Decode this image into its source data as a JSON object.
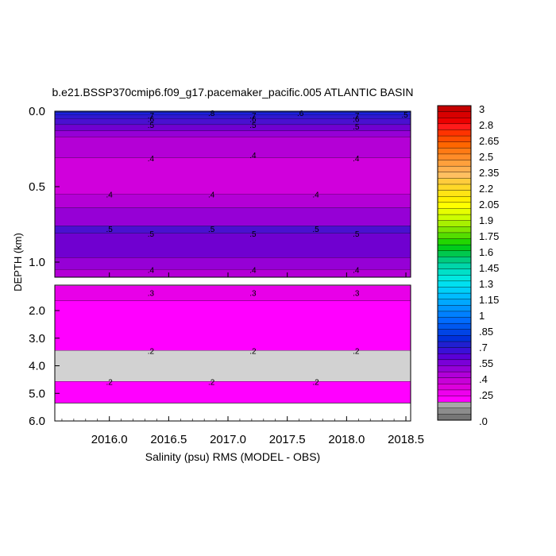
{
  "chart_data": {
    "type": "heatmap",
    "title": "b.e21.BSSP370cmip6.f09_g17.pacemaker_pacific.005 ATLANTIC BASIN",
    "xlabel": "Salinity (psu) RMS (MODEL - OBS)",
    "ylabel": "DEPTH (km)",
    "xlim": [
      2015.54,
      2018.54
    ],
    "x_ticks": [
      "2016.0",
      "2016.5",
      "2017.0",
      "2017.5",
      "2018.0",
      "2018.5"
    ],
    "upper_panel": {
      "depth_range_km": [
        0.0,
        1.1
      ],
      "y_ticks": [
        "0.0",
        "0.5",
        "1.0"
      ],
      "layers": [
        {
          "top": 0.0,
          "bottom": 0.01,
          "value": 0.8
        },
        {
          "top": 0.01,
          "bottom": 0.025,
          "value": 0.65
        },
        {
          "top": 0.025,
          "bottom": 0.05,
          "value": 0.6
        },
        {
          "top": 0.05,
          "bottom": 0.09,
          "value": 0.55
        },
        {
          "top": 0.09,
          "bottom": 0.13,
          "value": 0.5
        },
        {
          "top": 0.13,
          "bottom": 0.17,
          "value": 0.45
        },
        {
          "top": 0.17,
          "bottom": 0.31,
          "value": 0.4
        },
        {
          "top": 0.31,
          "bottom": 0.55,
          "value": 0.35
        },
        {
          "top": 0.55,
          "bottom": 0.64,
          "value": 0.4
        },
        {
          "top": 0.64,
          "bottom": 0.76,
          "value": 0.45
        },
        {
          "top": 0.76,
          "bottom": 0.81,
          "value": 0.55
        },
        {
          "top": 0.81,
          "bottom": 0.97,
          "value": 0.5
        },
        {
          "top": 0.97,
          "bottom": 1.05,
          "value": 0.45
        },
        {
          "top": 1.05,
          "bottom": 1.1,
          "value": 0.4
        }
      ],
      "contour_labels": [
        {
          "text": ".7",
          "x": 2016.35,
          "depth": 0.025
        },
        {
          "text": ".6",
          "x": 2016.35,
          "depth": 0.05
        },
        {
          "text": ".5",
          "x": 2016.35,
          "depth": 0.09
        },
        {
          "text": ".8",
          "x": 2016.86,
          "depth": 0.01
        },
        {
          "text": ".7",
          "x": 2017.21,
          "depth": 0.025
        },
        {
          "text": ".6",
          "x": 2017.21,
          "depth": 0.05
        },
        {
          "text": ".5",
          "x": 2017.21,
          "depth": 0.09
        },
        {
          "text": ".6",
          "x": 2017.61,
          "depth": 0.01
        },
        {
          "text": ".7",
          "x": 2018.08,
          "depth": 0.025
        },
        {
          "text": ".6",
          "x": 2018.08,
          "depth": 0.05
        },
        {
          "text": ".5",
          "x": 2018.08,
          "depth": 0.1
        },
        {
          "text": ".5",
          "x": 2018.49,
          "depth": 0.02
        },
        {
          "text": ".4",
          "x": 2016.35,
          "depth": 0.31
        },
        {
          "text": ".4",
          "x": 2017.21,
          "depth": 0.29
        },
        {
          "text": ".4",
          "x": 2018.08,
          "depth": 0.31
        },
        {
          "text": ".4",
          "x": 2016.0,
          "depth": 0.55
        },
        {
          "text": ".4",
          "x": 2016.86,
          "depth": 0.55
        },
        {
          "text": ".4",
          "x": 2017.74,
          "depth": 0.55
        },
        {
          "text": ".5",
          "x": 2016.0,
          "depth": 0.78
        },
        {
          "text": ".5",
          "x": 2016.35,
          "depth": 0.81
        },
        {
          "text": ".5",
          "x": 2016.86,
          "depth": 0.78
        },
        {
          "text": ".5",
          "x": 2017.21,
          "depth": 0.81
        },
        {
          "text": ".5",
          "x": 2017.74,
          "depth": 0.78
        },
        {
          "text": ".5",
          "x": 2018.08,
          "depth": 0.81
        },
        {
          "text": ".4",
          "x": 2016.35,
          "depth": 1.05
        },
        {
          "text": ".4",
          "x": 2017.21,
          "depth": 1.05
        },
        {
          "text": ".4",
          "x": 2018.08,
          "depth": 1.05
        }
      ]
    },
    "lower_panel": {
      "depth_range_km": [
        1.1,
        6.0
      ],
      "y_ticks": [
        "2.0",
        "3.0",
        "4.0",
        "5.0",
        "6.0"
      ],
      "layers": [
        {
          "top": 1.1,
          "bottom": 1.65,
          "value": 0.3
        },
        {
          "top": 1.65,
          "bottom": 3.45,
          "value": 0.25
        },
        {
          "top": 3.45,
          "bottom": 4.57,
          "value": 0.15
        },
        {
          "top": 4.57,
          "bottom": 5.35,
          "value": 0.25
        }
      ],
      "contour_labels": [
        {
          "text": ".3",
          "x": 2016.35,
          "depth": 1.35
        },
        {
          "text": ".3",
          "x": 2017.21,
          "depth": 1.35
        },
        {
          "text": ".3",
          "x": 2018.08,
          "depth": 1.35
        },
        {
          "text": ".2",
          "x": 2016.35,
          "depth": 3.45
        },
        {
          "text": ".2",
          "x": 2017.21,
          "depth": 3.45
        },
        {
          "text": ".2",
          "x": 2018.08,
          "depth": 3.45
        },
        {
          "text": ".2",
          "x": 2016.0,
          "depth": 4.57
        },
        {
          "text": ".2",
          "x": 2016.86,
          "depth": 4.57
        },
        {
          "text": ".2",
          "x": 2017.74,
          "depth": 4.57
        }
      ]
    },
    "colorbar": {
      "labels": [
        "3",
        "2.8",
        "2.65",
        "2.5",
        "2.35",
        "2.2",
        "2.05",
        "1.9",
        "1.75",
        "1.6",
        "1.45",
        "1.3",
        "1.15",
        "1",
        ".85",
        ".7",
        ".55",
        ".4",
        ".25",
        ".0"
      ],
      "colors_top_to_bottom": [
        "#c40000",
        "#d80000",
        "#ec0000",
        "#ff1a1a",
        "#ff3300",
        "#ff4d00",
        "#ff6600",
        "#ff7a14",
        "#ff8c28",
        "#ffa03c",
        "#ffb050",
        "#ffbf60",
        "#ffcc3c",
        "#ffd828",
        "#ffe414",
        "#fff000",
        "#ffff00",
        "#e6ff00",
        "#ccff00",
        "#a8f000",
        "#80e600",
        "#55dd00",
        "#22d600",
        "#00cc1a",
        "#00c84d",
        "#00cc80",
        "#00d6aa",
        "#00e0c8",
        "#00e8e0",
        "#00e0f0",
        "#00d0f8",
        "#00bcff",
        "#00a8ff",
        "#0094ff",
        "#0080ff",
        "#006cff",
        "#0058f0",
        "#0044e6",
        "#0030dc",
        "#2020d0",
        "#3a10d8",
        "#5a00d8",
        "#7a00d8",
        "#9600d8",
        "#b000d8",
        "#c800d8",
        "#dc00dc",
        "#ee00ee",
        "#ff00ff",
        "#a8a8a8",
        "#8c8c8c",
        "#767676"
      ]
    },
    "layer_colors": {
      "0.8": "#1828c8",
      "0.65": "#1c20e0",
      "0.6": "#3018d0",
      "0.55": "#4a10d0",
      "0.5": "#7000d0",
      "0.45": "#9600d6",
      "0.4": "#b400d6",
      "0.35": "#d000dc",
      "0.3": "#e800e8",
      "0.25": "#ff00ff",
      "0.15": "#d2d2d2"
    }
  }
}
